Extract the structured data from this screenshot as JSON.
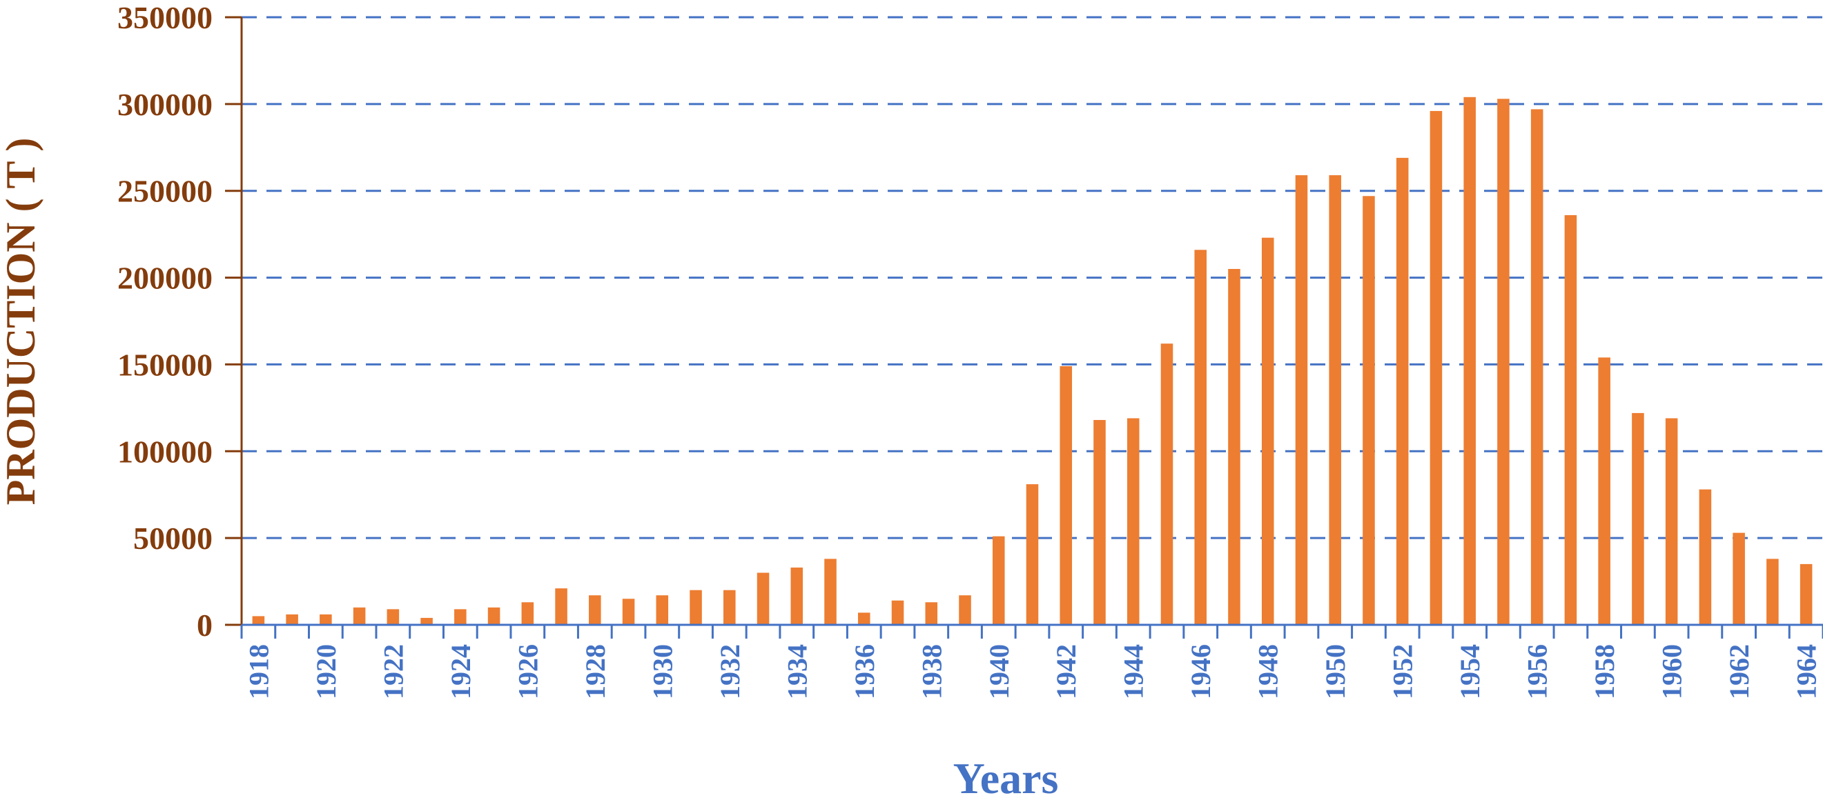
{
  "chart_data": {
    "type": "bar",
    "title": "",
    "xlabel": "Years",
    "ylabel": "PRODUCTION ( T )",
    "ylim": [
      0,
      350000
    ],
    "yticks": [
      0,
      50000,
      100000,
      150000,
      200000,
      250000,
      300000,
      350000
    ],
    "grid": true,
    "legend": "none",
    "categories": [
      1918,
      1919,
      1920,
      1921,
      1922,
      1923,
      1924,
      1925,
      1926,
      1927,
      1928,
      1929,
      1930,
      1931,
      1932,
      1933,
      1934,
      1935,
      1936,
      1937,
      1938,
      1939,
      1940,
      1941,
      1942,
      1943,
      1944,
      1945,
      1946,
      1947,
      1948,
      1949,
      1950,
      1951,
      1952,
      1953,
      1954,
      1955,
      1956,
      1957,
      1958,
      1959,
      1960,
      1961,
      1962,
      1963,
      1964
    ],
    "tick_labels": [
      "1918",
      "1920",
      "1922",
      "1924",
      "1926",
      "1928",
      "1930",
      "1932",
      "1934",
      "1936",
      "1938",
      "1940",
      "1942",
      "1944",
      "1946",
      "1948",
      "1950",
      "1952",
      "1954",
      "1956",
      "1958",
      "1960",
      "1962",
      "1964"
    ],
    "values": [
      5000,
      6000,
      6000,
      10000,
      9000,
      4000,
      9000,
      10000,
      13000,
      21000,
      17000,
      15000,
      17000,
      20000,
      20000,
      30000,
      33000,
      38000,
      7000,
      14000,
      13000,
      17000,
      51000,
      81000,
      149000,
      118000,
      119000,
      162000,
      216000,
      205000,
      223000,
      259000,
      259000,
      247000,
      269000,
      296000,
      304000,
      303000,
      297000,
      236000,
      154000,
      122000,
      119000,
      78000,
      53000,
      38000,
      35000
    ],
    "colors": {
      "bar": "#ED7D31",
      "grid": "#4472C4",
      "yaxis": "#843C0C",
      "xaxis": "#4472C4"
    }
  }
}
